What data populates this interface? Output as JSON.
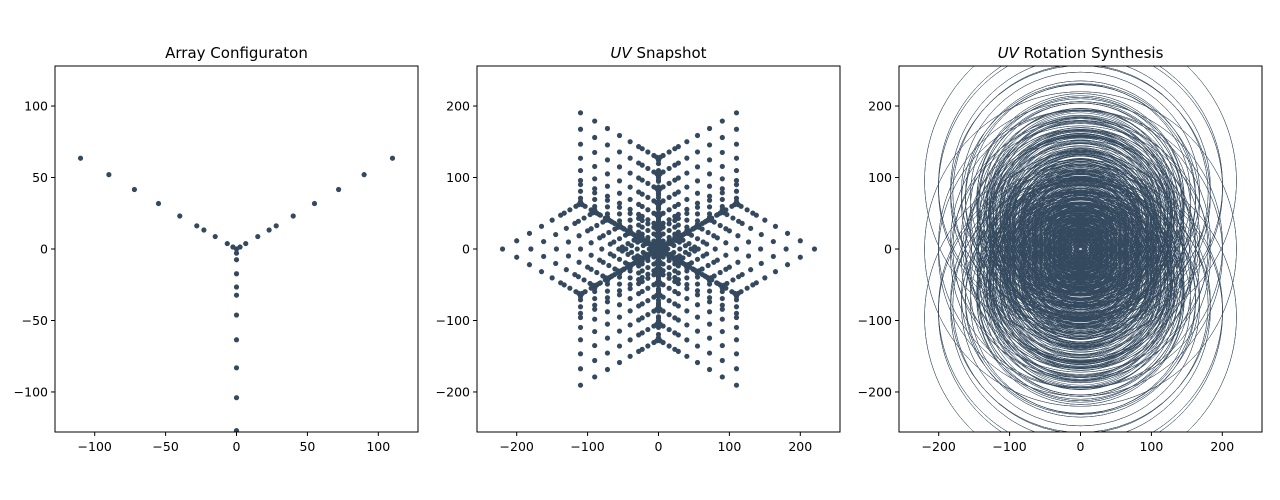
{
  "colors": {
    "marker": "#34495e",
    "axes": "#000000",
    "background": "#ffffff"
  },
  "chart_data": [
    {
      "type": "scatter",
      "title": "Array Configuraton",
      "title_italic": "",
      "xlabel": "",
      "ylabel": "",
      "xlim": [
        -128,
        128
      ],
      "ylim": [
        -128,
        128
      ],
      "xticks": [
        -100,
        -50,
        0,
        50,
        100
      ],
      "yticks": [
        -100,
        -50,
        0,
        50,
        100
      ],
      "grid": false,
      "points": [
        [
          0,
          0
        ],
        [
          2.5,
          1.4
        ],
        [
          -2.5,
          1.4
        ],
        [
          0,
          -2.9
        ],
        [
          6.5,
          3.8
        ],
        [
          -6.5,
          3.8
        ],
        [
          0,
          -7.5
        ],
        [
          15,
          8.7
        ],
        [
          -15,
          8.7
        ],
        [
          0,
          -17.3
        ],
        [
          23,
          13.3
        ],
        [
          -23,
          13.3
        ],
        [
          0,
          -26.6
        ],
        [
          28,
          16.2
        ],
        [
          -28,
          16.2
        ],
        [
          0,
          -32.3
        ],
        [
          40,
          23.1
        ],
        [
          -40,
          23.1
        ],
        [
          0,
          -46.2
        ],
        [
          55,
          31.8
        ],
        [
          -55,
          31.8
        ],
        [
          0,
          -63.5
        ],
        [
          72,
          41.6
        ],
        [
          -72,
          41.6
        ],
        [
          0,
          -83.1
        ],
        [
          90,
          52
        ],
        [
          -90,
          52
        ],
        [
          0,
          -104
        ],
        [
          110,
          63.5
        ],
        [
          -110,
          63.5
        ],
        [
          0,
          -127
        ]
      ]
    },
    {
      "type": "scatter",
      "title": " Snapshot",
      "title_italic": "UV",
      "xlabel": "",
      "ylabel": "",
      "xlim": [
        -256,
        256
      ],
      "ylim": [
        -256,
        256
      ],
      "xticks": [
        -200,
        -100,
        0,
        100,
        200
      ],
      "yticks": [
        -200,
        -100,
        0,
        100,
        200
      ],
      "grid": false,
      "derived_from_array": true
    },
    {
      "type": "line",
      "title": " Rotation Synthesis",
      "title_italic": "UV",
      "xlabel": "",
      "ylabel": "",
      "xlim": [
        -256,
        256
      ],
      "ylim": [
        -256,
        256
      ],
      "xticks": [
        -200,
        -100,
        0,
        100,
        200
      ],
      "yticks": [
        -200,
        -100,
        0,
        100,
        200
      ],
      "grid": false,
      "ellipse_offset_ratio": 0.5,
      "derived_from_array": true
    }
  ]
}
